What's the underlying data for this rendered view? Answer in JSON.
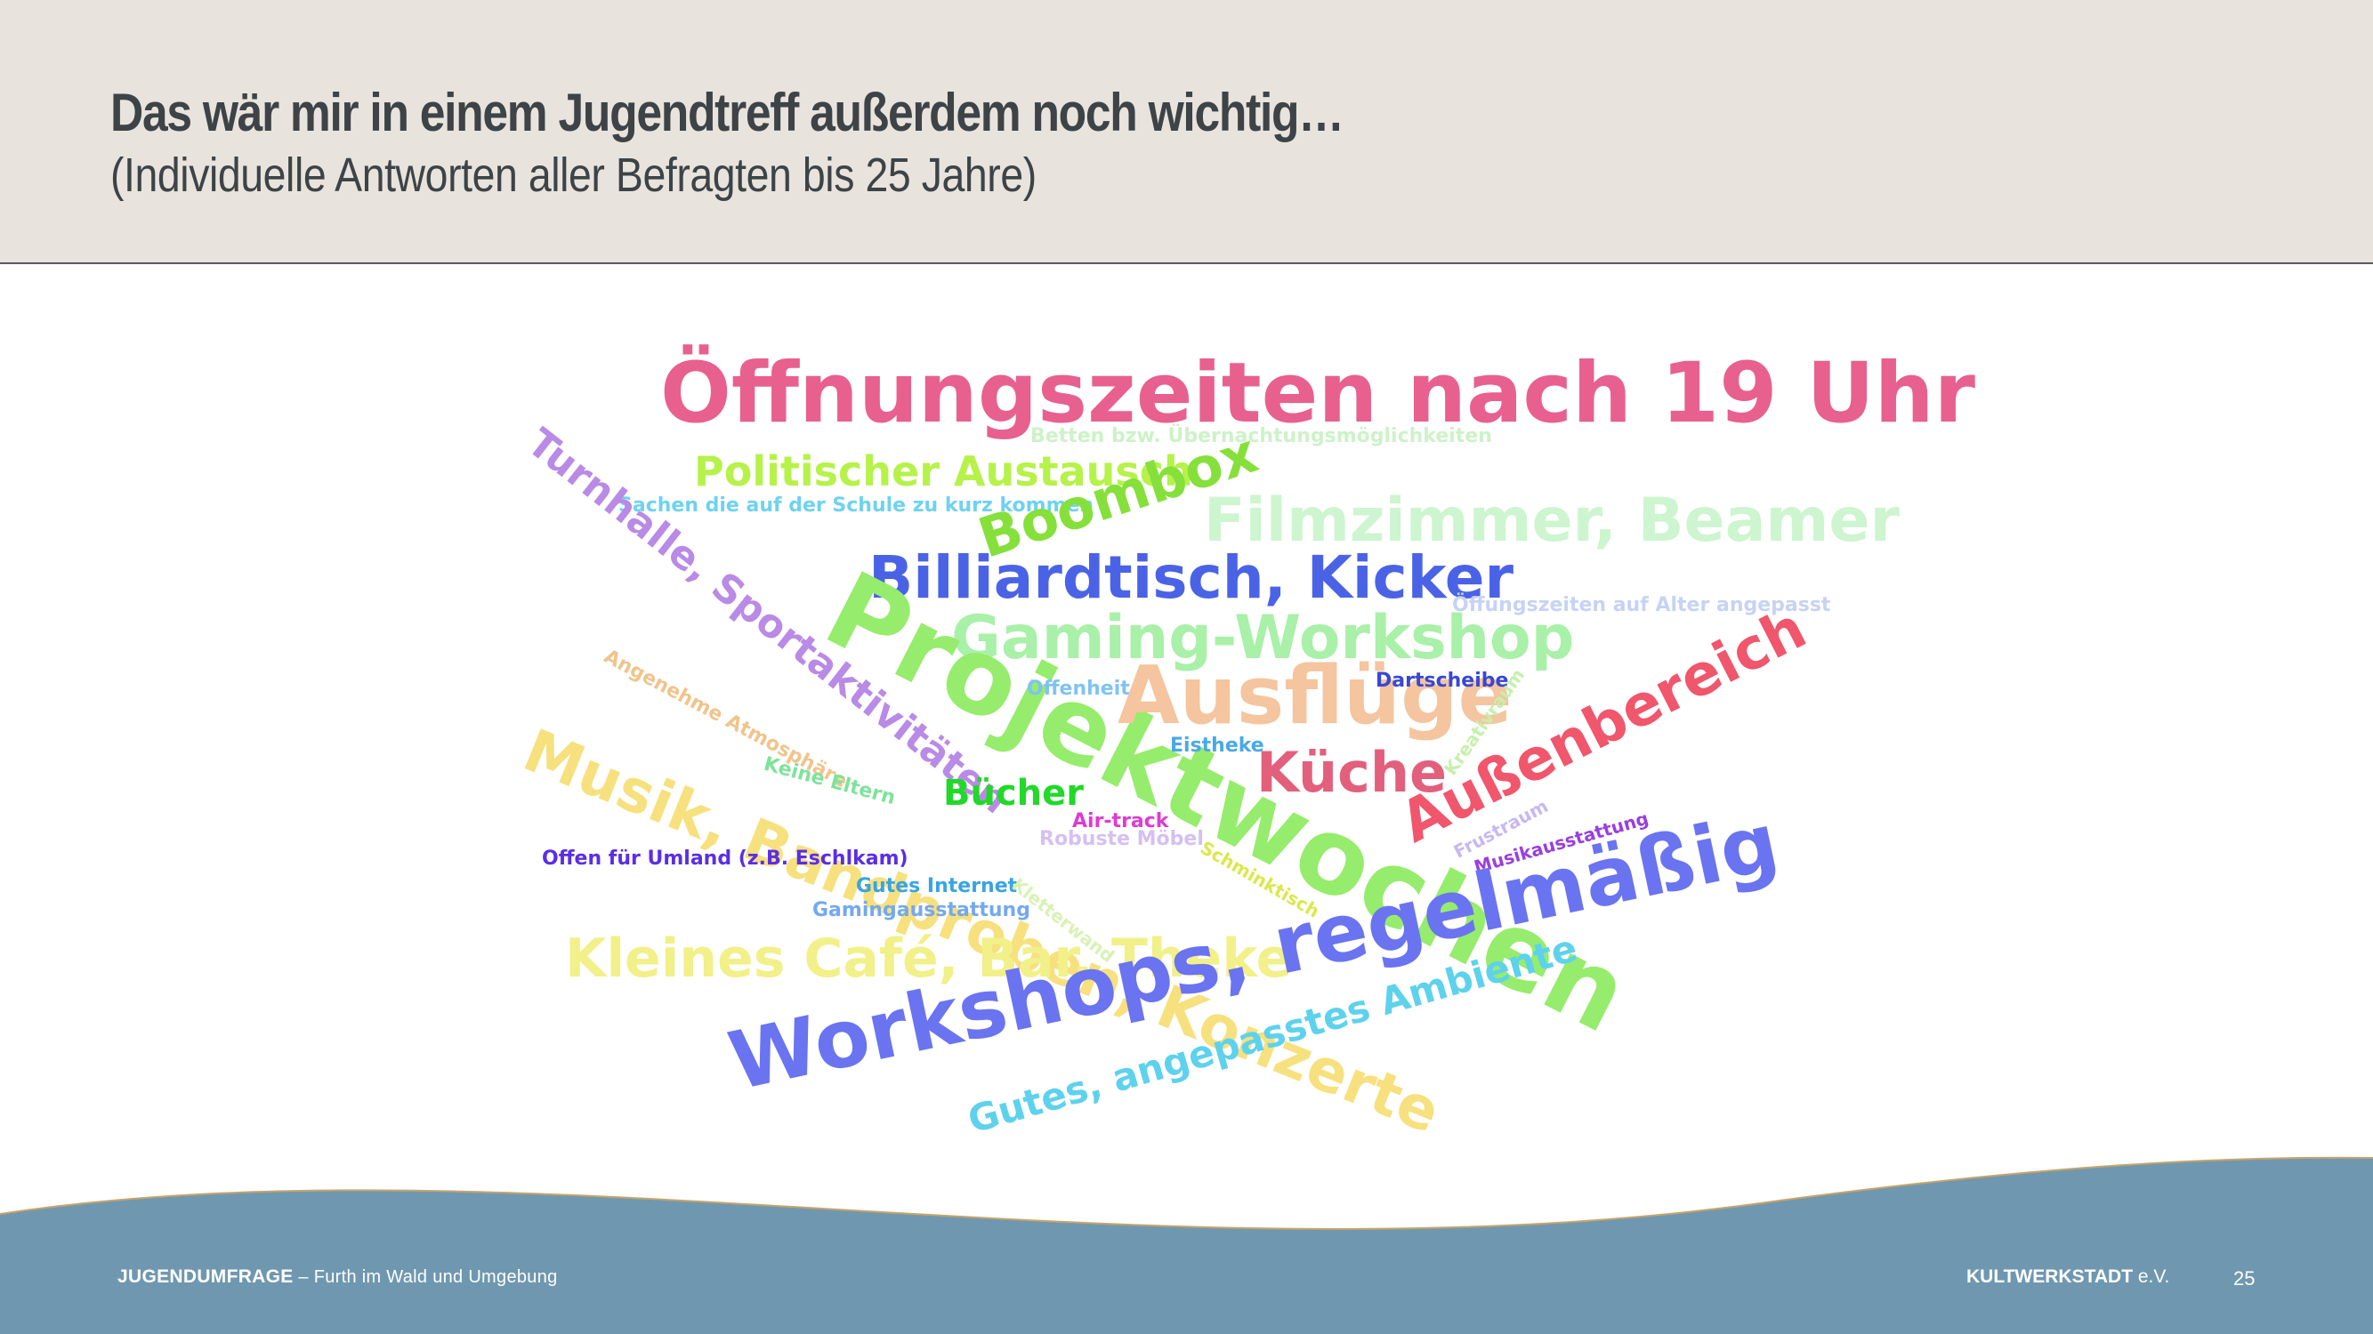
{
  "header": {
    "title": "Das wär mir in einem Jugendtreff außerdem noch wichtig…",
    "subtitle": "(Individuelle Antworten aller Befragten bis 25 Jahre)"
  },
  "word_cloud": [
    {
      "text": "Öffnungszeiten nach 19 Uhr",
      "color": "#e8608e"
    },
    {
      "text": "Betten bzw. Übernachtungsmöglichkeiten",
      "color": "#cdf2c8"
    },
    {
      "text": "Politischer Austausch",
      "color": "#b6f24a"
    },
    {
      "text": "Sachen die auf der Schule zu kurz kommen",
      "color": "#6fd2f0"
    },
    {
      "text": "Boombox",
      "color": "#86e03c"
    },
    {
      "text": "Filmzimmer, Beamer",
      "color": "#cdf5cf"
    },
    {
      "text": "Turnhalle, Sportaktivitäten",
      "color": "#b98ae6"
    },
    {
      "text": "Billiardtisch, Kicker",
      "color": "#4a63e6"
    },
    {
      "text": "Öffungszeiten auf Alter angepasst",
      "color": "#c6d3f5"
    },
    {
      "text": "Gaming-Workshop",
      "color": "#a9f0a8"
    },
    {
      "text": "Projektwochen",
      "color": "#96ec6c"
    },
    {
      "text": "Angenehme Atmosphäre",
      "color": "#f0c48c"
    },
    {
      "text": "Offenheit",
      "color": "#7fc3f2"
    },
    {
      "text": "Ausflüge",
      "color": "#f4c59e"
    },
    {
      "text": "Dartscheibe",
      "color": "#3847d6"
    },
    {
      "text": "Außenbereich",
      "color": "#f0566c"
    },
    {
      "text": "Kreativraum",
      "color": "#c6f0ac"
    },
    {
      "text": "Eistheke",
      "color": "#4aa9e4"
    },
    {
      "text": "Keine Eltern",
      "color": "#7ee39a"
    },
    {
      "text": "Küche",
      "color": "#e2607c"
    },
    {
      "text": "Musik, Bandproben, Konzerte",
      "color": "#f7e07e"
    },
    {
      "text": "Bücher",
      "color": "#22d82a"
    },
    {
      "text": "Frustraum",
      "color": "#c7b8f2"
    },
    {
      "text": "Musikausstattung",
      "color": "#9a3ee0"
    },
    {
      "text": "Air-track",
      "color": "#e03ad2"
    },
    {
      "text": "Robuste Möbel",
      "color": "#d6bff2"
    },
    {
      "text": "Schminktisch",
      "color": "#dbe84a"
    },
    {
      "text": "Offen für Umland (z.B. Eschlkam)",
      "color": "#5a2ee6"
    },
    {
      "text": "Gutes Internet",
      "color": "#3aa4e2"
    },
    {
      "text": "Kletterwand",
      "color": "#d8f2b4"
    },
    {
      "text": "Gamingausstattung",
      "color": "#74a9f0"
    },
    {
      "text": "Kleines Café, Bar, Theke",
      "color": "#f2f088"
    },
    {
      "text": "Workshops, regelmäßig",
      "color": "#6a74f0"
    },
    {
      "text": "Gutes, angepasstes Ambiente",
      "color": "#5ed2ec"
    }
  ],
  "footer": {
    "survey_label": "JUGENDUMFRAGE",
    "location": " – Furth im Wald und Umgebung",
    "org_name": "KULTWERKSTADT",
    "org_suffix": " e.V.",
    "page_number": "25"
  },
  "colors": {
    "header_bg": "#e8e4dd",
    "title_text": "#3d4346",
    "wave_fill": "#6f98b0",
    "wave_edge": "#c7a46a"
  }
}
